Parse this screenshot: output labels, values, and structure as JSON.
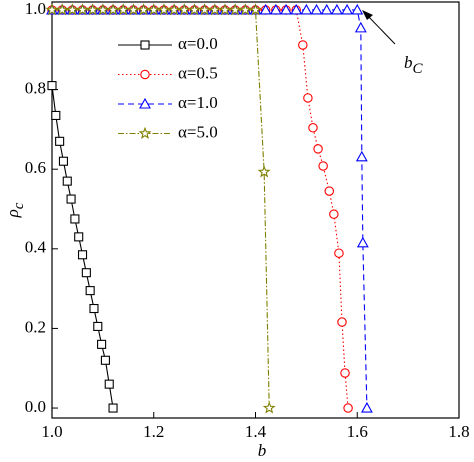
{
  "chart_data": {
    "type": "line",
    "xlabel": "b",
    "ylabel": {
      "text": "ρ",
      "sub": "c"
    },
    "annotation": {
      "text": "b",
      "sub": "C"
    },
    "xlim": [
      1.0,
      1.8
    ],
    "ylim": [
      -0.025,
      1.02
    ],
    "xticks": [
      {
        "value": 1.0,
        "label": "1.0"
      },
      1.2,
      1.4,
      1.6,
      1.8
    ],
    "yticks": [
      {
        "value": 0,
        "label": "0.0"
      },
      0.2,
      0.4,
      0.6,
      0.8,
      {
        "value": 1,
        "label": "1.0"
      }
    ],
    "series": [
      {
        "name": "α=0.0",
        "color": "#000000",
        "linestyle": "solid",
        "marker": "square",
        "x": [
          1.0,
          1.0075,
          1.015,
          1.0225,
          1.03,
          1.0375,
          1.045,
          1.0525,
          1.06,
          1.0675,
          1.075,
          1.0825,
          1.09,
          1.0975,
          1.105,
          1.1125,
          1.12
        ],
        "values": [
          0.81,
          0.735,
          0.67,
          0.62,
          0.57,
          0.525,
          0.475,
          0.43,
          0.385,
          0.34,
          0.295,
          0.25,
          0.205,
          0.16,
          0.12,
          0.06,
          0.0
        ]
      },
      {
        "name": "α=0.5",
        "color": "#ff0000",
        "linestyle": "dotted",
        "marker": "circle",
        "x": [
          1.0,
          1.02,
          1.04,
          1.06,
          1.08,
          1.1,
          1.12,
          1.14,
          1.16,
          1.18,
          1.2,
          1.22,
          1.24,
          1.26,
          1.28,
          1.3,
          1.32,
          1.34,
          1.36,
          1.38,
          1.4,
          1.42,
          1.44,
          1.46,
          1.48,
          1.493,
          1.503,
          1.513,
          1.523,
          1.533,
          1.545,
          1.554,
          1.564,
          1.57,
          1.576,
          1.582
        ],
        "values": [
          1,
          1,
          1,
          1,
          1,
          1,
          1,
          1,
          1,
          1,
          1,
          1,
          1,
          1,
          1,
          1,
          1,
          1,
          1,
          1,
          1,
          1,
          1,
          1,
          1,
          0.912,
          0.779,
          0.704,
          0.651,
          0.608,
          0.545,
          0.487,
          0.389,
          0.216,
          0.088,
          0.0
        ]
      },
      {
        "name": "α=1.0",
        "color": "#0000ff",
        "linestyle": "dashed",
        "marker": "triangle",
        "x": [
          1.0,
          1.02,
          1.04,
          1.06,
          1.08,
          1.1,
          1.12,
          1.14,
          1.16,
          1.18,
          1.2,
          1.22,
          1.24,
          1.26,
          1.28,
          1.3,
          1.32,
          1.34,
          1.36,
          1.38,
          1.4,
          1.42,
          1.44,
          1.46,
          1.48,
          1.5,
          1.52,
          1.54,
          1.56,
          1.58,
          1.6,
          1.607,
          1.609,
          1.611,
          1.619
        ],
        "values": [
          1,
          1,
          1,
          1,
          1,
          1,
          1,
          1,
          1,
          1,
          1,
          1,
          1,
          1,
          1,
          1,
          1,
          1,
          1,
          1,
          1,
          1,
          1,
          1,
          1,
          1,
          1,
          1,
          1,
          1,
          1,
          0.955,
          0.631,
          0.415,
          0.0
        ]
      },
      {
        "name": "α=5.0",
        "color": "#808000",
        "linestyle": "dashdot",
        "marker": "star",
        "x": [
          1.0,
          1.02,
          1.04,
          1.06,
          1.08,
          1.1,
          1.12,
          1.14,
          1.16,
          1.18,
          1.2,
          1.22,
          1.24,
          1.26,
          1.28,
          1.3,
          1.32,
          1.34,
          1.36,
          1.38,
          1.4,
          1.417,
          1.427
        ],
        "values": [
          1,
          1,
          1,
          1,
          1,
          1,
          1,
          1,
          1,
          1,
          1,
          1,
          1,
          1,
          1,
          1,
          1,
          1,
          1,
          1,
          1,
          0.593,
          0.0
        ]
      }
    ]
  }
}
